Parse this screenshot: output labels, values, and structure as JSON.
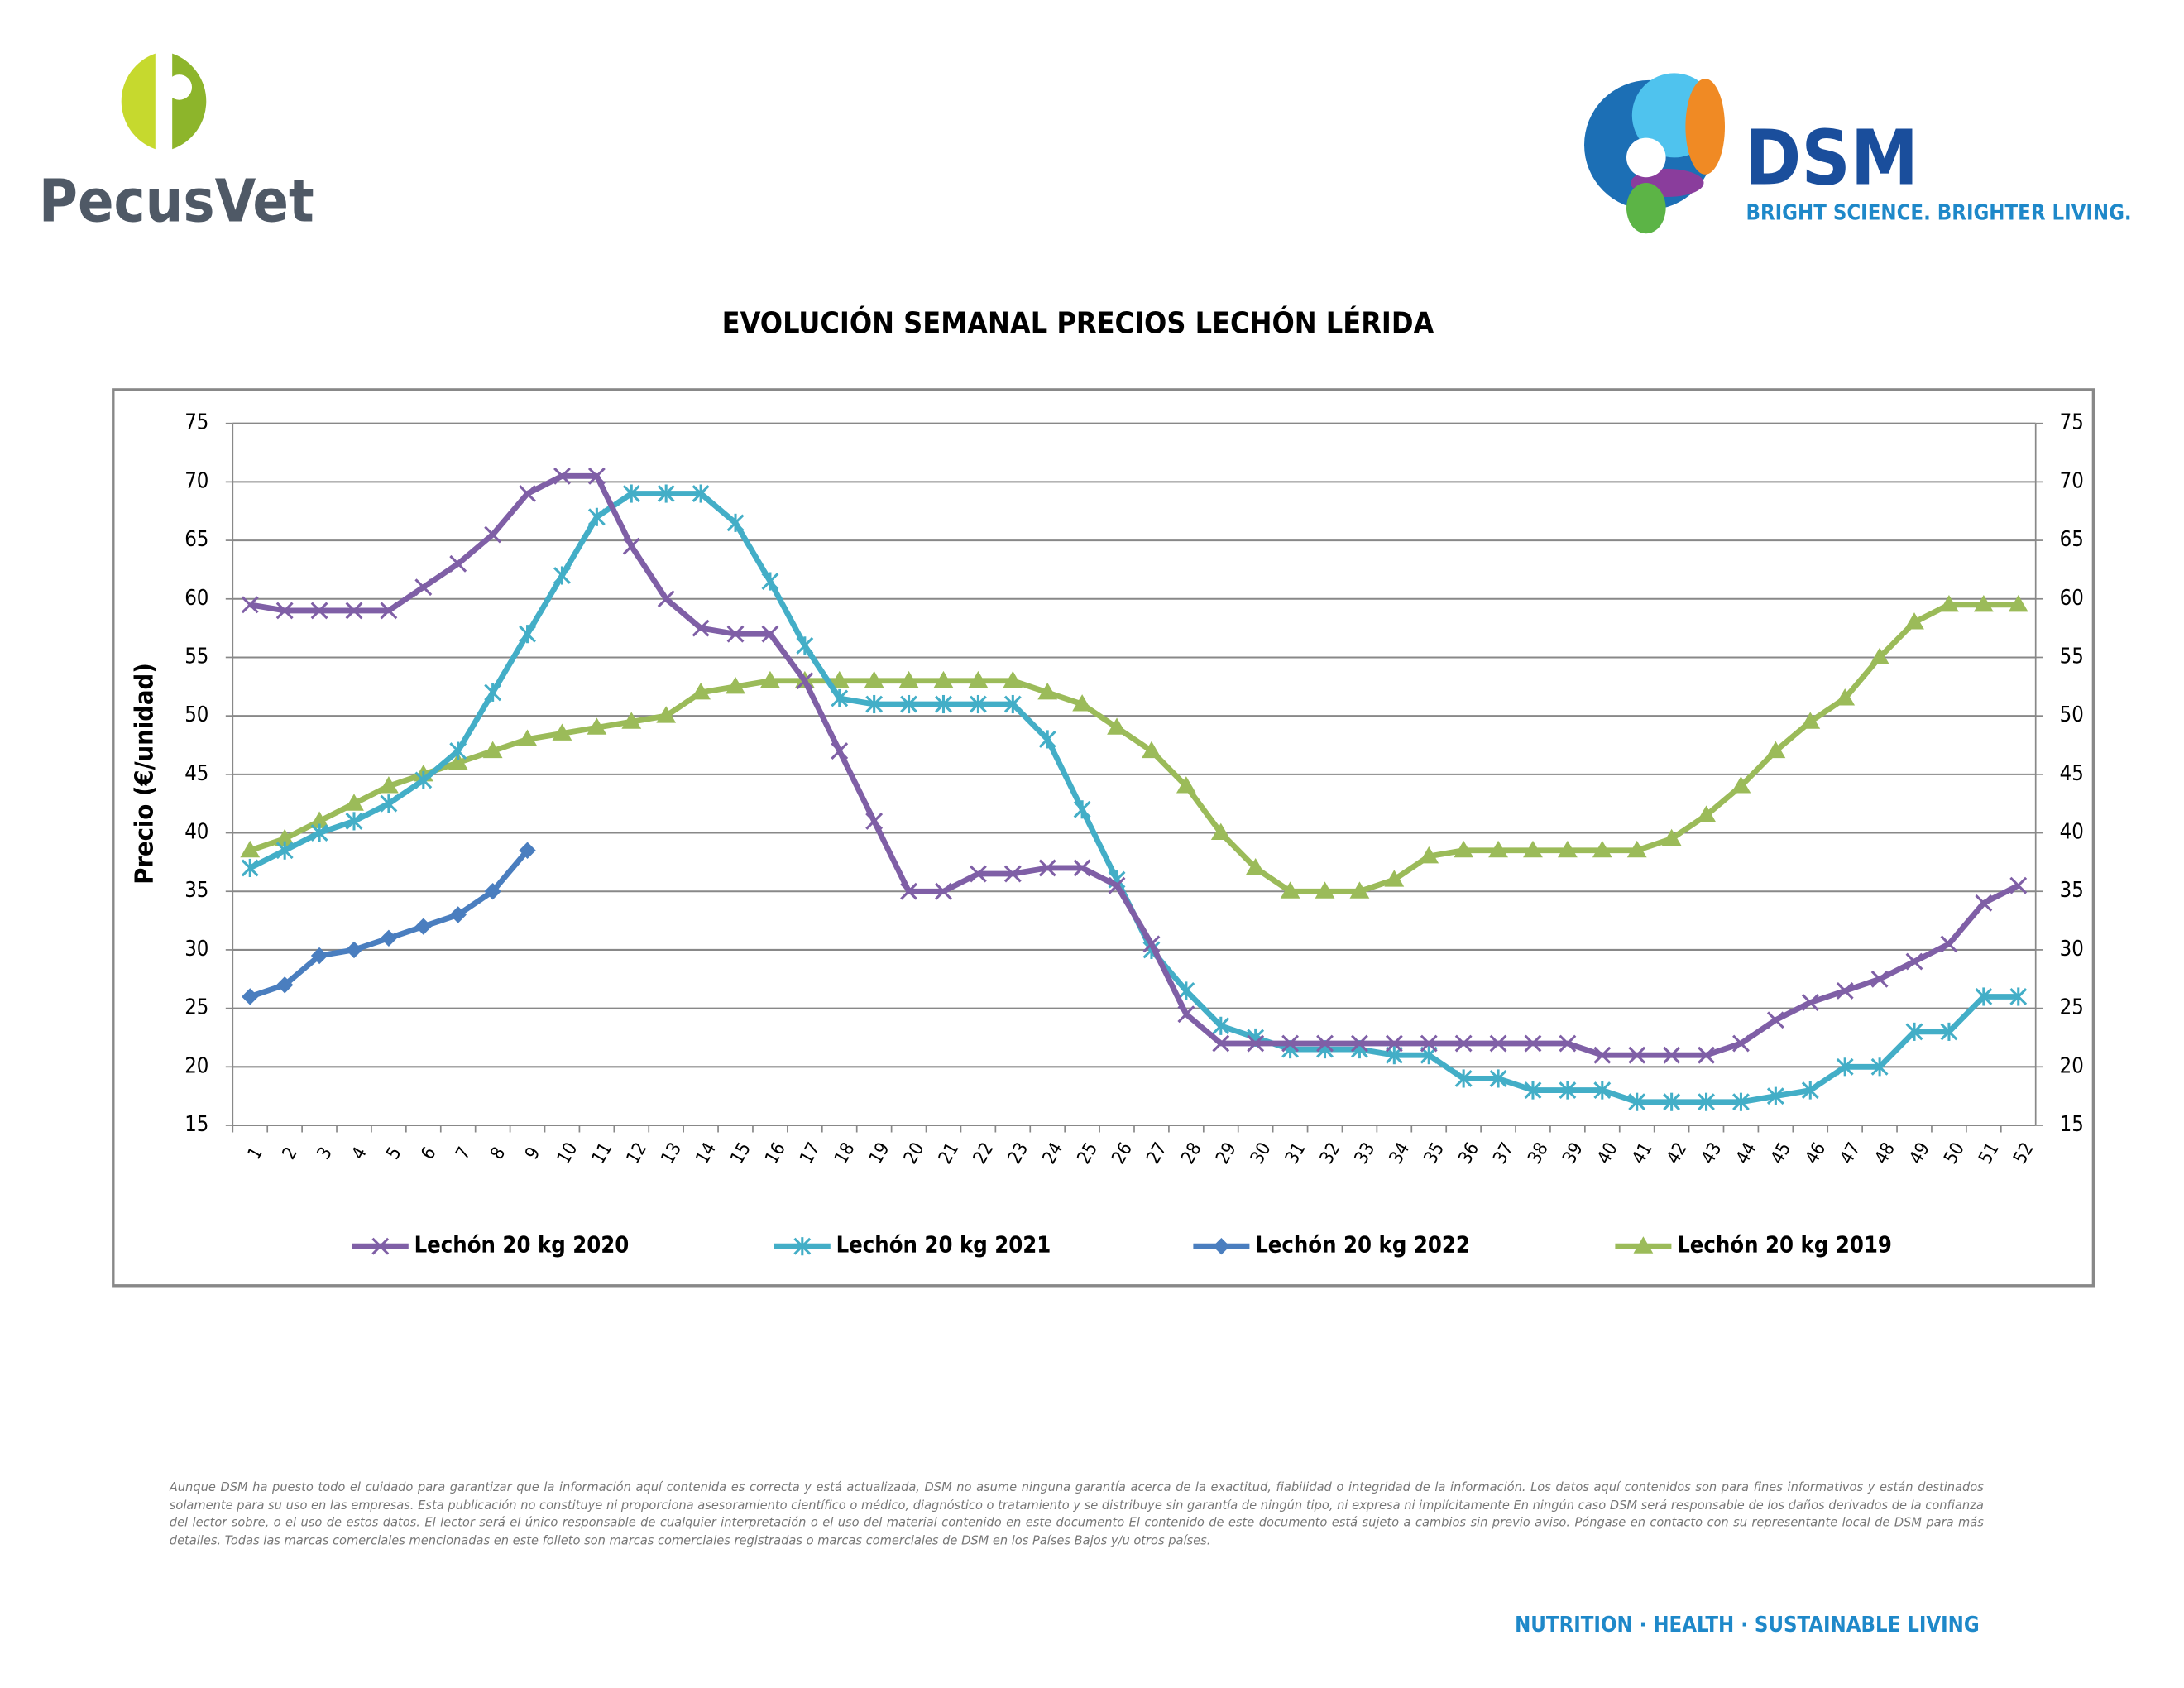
{
  "header": {
    "left_logo": "PecusVet",
    "right_logo": "DSM",
    "tagline": "BRIGHT SCIENCE. BRIGHTER LIVING."
  },
  "footer": {
    "disclaimer": "Aunque DSM ha puesto todo el cuidado para garantizar que la información aquí contenida es correcta y está actualizada, DSM no asume ninguna garantía acerca de la exactitud, fiabilidad o integridad de la información. Los datos aquí contenidos son para fines informativos y están destinados solamente para su uso en las empresas. Esta publicación no constituye ni proporciona asesoramiento científico o médico, diagnóstico o tratamiento y se distribuye sin garantía de ningún tipo, ni expresa ni implícitamente En ningún caso DSM será responsable de los daños derivados de la confianza del lector sobre, o el uso de estos datos. El lector será el único responsable de cualquier interpretación o el uso del material contenido en este documento El contenido de este documento está sujeto a cambios sin previo aviso. Póngase en contacto con su representante local de DSM para más detalles. Todas las marcas comerciales mencionadas en este folleto son marcas comerciales registradas o marcas comerciales de DSM en los Países Bajos y/u otros países.",
    "slogan": "NUTRITION · HEALTH · SUSTAINABLE LIVING"
  },
  "chart_data": {
    "type": "line",
    "title": "EVOLUCIÓN SEMANAL PRECIOS LECHÓN LÉRIDA",
    "y_label": "Precio (€/unidad)",
    "categories": [
      "1",
      "2",
      "3",
      "4",
      "5",
      "6",
      "7",
      "8",
      "9",
      "10",
      "11",
      "12",
      "13",
      "14",
      "15",
      "16",
      "17",
      "18",
      "19",
      "20",
      "21",
      "22",
      "23",
      "24",
      "25",
      "26",
      "27",
      "28",
      "29",
      "30",
      "31",
      "32",
      "33",
      "34",
      "35",
      "36",
      "37",
      "38",
      "39",
      "40",
      "41",
      "42",
      "43",
      "44",
      "45",
      "46",
      "47",
      "48",
      "49",
      "50",
      "51",
      "52"
    ],
    "ylim": [
      15,
      75
    ],
    "yticks": [
      15,
      20,
      25,
      30,
      35,
      40,
      45,
      50,
      55,
      60,
      65,
      70,
      75
    ],
    "y2lim": [
      15,
      75
    ],
    "y2ticks": [
      15,
      20,
      25,
      30,
      35,
      40,
      45,
      50,
      55,
      60,
      65,
      70,
      75
    ],
    "grid": true,
    "legend": "bottom",
    "series": [
      {
        "name": "Lechón 20 kg 2020",
        "color": "#7f5fa6",
        "marker": "x",
        "values": [
          59.5,
          59,
          59,
          59,
          59,
          61,
          63,
          65.5,
          69,
          70.5,
          70.5,
          64.5,
          60,
          57.5,
          57,
          57,
          53,
          47,
          41,
          35,
          35,
          36.5,
          36.5,
          37,
          37,
          35.5,
          30.5,
          24.5,
          22,
          22,
          22,
          22,
          22,
          22,
          22,
          22,
          22,
          22,
          22,
          21,
          21,
          21,
          21,
          22,
          24,
          25.5,
          26.5,
          27.5,
          29,
          30.5,
          34,
          35.5
        ]
      },
      {
        "name": "Lechón 20 kg 2021",
        "color": "#43aec7",
        "marker": "star",
        "values": [
          37,
          38.5,
          40,
          41,
          42.5,
          44.5,
          47,
          52,
          57,
          62,
          67,
          69,
          69,
          69,
          66.5,
          61.5,
          56,
          51.5,
          51,
          51,
          51,
          51,
          51,
          48,
          42,
          36,
          30,
          26.5,
          23.5,
          22.5,
          21.5,
          21.5,
          21.5,
          21,
          21,
          19,
          19,
          18,
          18,
          18,
          17,
          17,
          17,
          17,
          17.5,
          18,
          20,
          20,
          23,
          23,
          26,
          26
        ]
      },
      {
        "name": "Lechón 20 kg 2022",
        "color": "#4a7ebf",
        "marker": "diamond",
        "values": [
          26,
          27,
          29.5,
          30,
          31,
          32,
          33,
          35,
          38.5,
          null,
          null,
          null,
          null,
          null,
          null,
          null,
          null,
          null,
          null,
          null,
          null,
          null,
          null,
          null,
          null,
          null,
          null,
          null,
          null,
          null,
          null,
          null,
          null,
          null,
          null,
          null,
          null,
          null,
          null,
          null,
          null,
          null,
          null,
          null,
          null,
          null,
          null,
          null,
          null,
          null,
          null,
          null
        ]
      },
      {
        "name": "Lechón 20 kg 2019",
        "color": "#9bbb59",
        "marker": "triangle",
        "values": [
          38.5,
          39.5,
          41,
          42.5,
          44,
          45,
          46,
          47,
          48,
          48.5,
          49,
          49.5,
          50,
          52,
          52.5,
          53,
          53,
          53,
          53,
          53,
          53,
          53,
          53,
          52,
          51,
          49,
          47,
          44,
          40,
          37,
          35,
          35,
          35,
          36,
          38,
          38.5,
          38.5,
          38.5,
          38.5,
          38.5,
          38.5,
          39.5,
          41.5,
          44,
          47,
          49.5,
          51.5,
          55,
          58,
          59.5,
          59.5,
          59.5
        ]
      }
    ]
  }
}
